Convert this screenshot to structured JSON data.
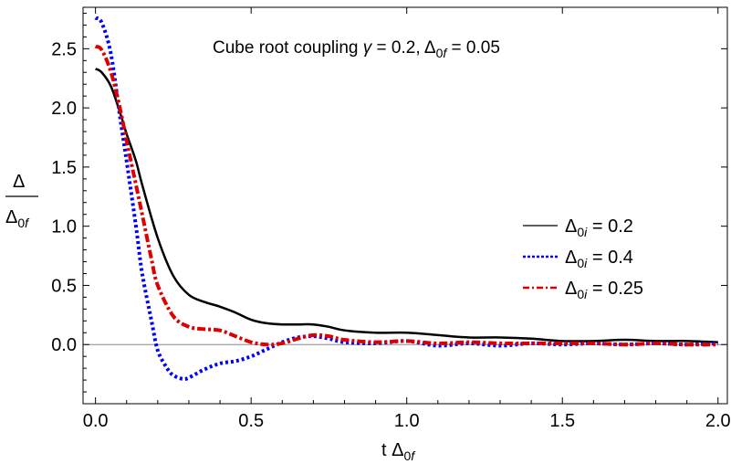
{
  "chart_data": {
    "type": "line",
    "title": {
      "prefix": "Cube root coupling ",
      "gamma_symbol": "γ",
      "gamma_rest": " = 0.2, Δ",
      "gamma_sub": "0",
      "gamma_sub_italic": "f",
      "delta_rest": " = 0.05"
    },
    "xlabel": {
      "main": "t Δ",
      "sub": "0",
      "sub_italic": "f"
    },
    "ylabel": {
      "numerator": "Δ",
      "denominator": "Δ",
      "den_sub": "0",
      "den_sub_italic": "f"
    },
    "xlim": [
      -0.04,
      2.03
    ],
    "ylim": [
      -0.5,
      2.85
    ],
    "xticks": [
      "0.0",
      "0.5",
      "1.0",
      "1.5",
      "2.0"
    ],
    "xtick_values": [
      0,
      0.5,
      1.0,
      1.5,
      2.0
    ],
    "yticks": [
      "0.0",
      "0.5",
      "1.0",
      "1.5",
      "2.0",
      "2.5"
    ],
    "ytick_values": [
      0,
      0.5,
      1.0,
      1.5,
      2.0,
      2.5
    ],
    "legend_position": "right",
    "series": [
      {
        "name": "Δ0i = 0.2",
        "legend": {
          "main": "Δ",
          "sub": "0",
          "sub_italic": "i",
          "rest": " = 0.2"
        },
        "color": "#000000",
        "style": "solid",
        "x": [
          0,
          0.02,
          0.05,
          0.08,
          0.1,
          0.13,
          0.15,
          0.2,
          0.25,
          0.3,
          0.35,
          0.4,
          0.45,
          0.5,
          0.55,
          0.6,
          0.65,
          0.7,
          0.75,
          0.8,
          0.9,
          1.0,
          1.1,
          1.2,
          1.3,
          1.4,
          1.5,
          1.6,
          1.7,
          1.8,
          1.9,
          2.0
        ],
        "y": [
          2.33,
          2.3,
          2.18,
          1.95,
          1.78,
          1.55,
          1.35,
          0.9,
          0.58,
          0.42,
          0.36,
          0.32,
          0.27,
          0.21,
          0.18,
          0.17,
          0.17,
          0.17,
          0.15,
          0.12,
          0.1,
          0.1,
          0.08,
          0.06,
          0.06,
          0.05,
          0.03,
          0.03,
          0.04,
          0.03,
          0.03,
          0.02
        ]
      },
      {
        "name": "Δ0i = 0.4",
        "legend": {
          "main": "Δ",
          "sub": "0",
          "sub_italic": "i",
          "rest": " = 0.4"
        },
        "color": "#0000ff",
        "style": "dotted",
        "x": [
          0,
          0.02,
          0.05,
          0.08,
          0.1,
          0.13,
          0.15,
          0.18,
          0.2,
          0.23,
          0.25,
          0.28,
          0.3,
          0.35,
          0.4,
          0.45,
          0.5,
          0.55,
          0.6,
          0.65,
          0.7,
          0.75,
          0.8,
          0.9,
          1.0,
          1.1,
          1.2,
          1.3,
          1.4,
          1.5,
          1.6,
          1.7,
          1.8,
          1.9,
          2.0
        ],
        "y": [
          2.76,
          2.72,
          2.45,
          1.9,
          1.55,
          1.0,
          0.6,
          0.2,
          -0.05,
          -0.2,
          -0.26,
          -0.29,
          -0.28,
          -0.21,
          -0.16,
          -0.14,
          -0.1,
          -0.04,
          0.02,
          0.06,
          0.07,
          0.05,
          0.02,
          0.01,
          0.03,
          -0.01,
          0.01,
          -0.01,
          0.01,
          0.0,
          0.01,
          0.0,
          0.01,
          0.0,
          0.01
        ]
      },
      {
        "name": "Δ0i = 0.25",
        "legend": {
          "main": "Δ",
          "sub": "0",
          "sub_italic": "i",
          "rest": " = 0.25"
        },
        "color": "#dd0000",
        "style": "dashdot",
        "x": [
          0,
          0.02,
          0.05,
          0.08,
          0.1,
          0.13,
          0.15,
          0.18,
          0.2,
          0.25,
          0.3,
          0.35,
          0.4,
          0.45,
          0.5,
          0.55,
          0.6,
          0.65,
          0.7,
          0.75,
          0.8,
          0.9,
          1.0,
          1.1,
          1.2,
          1.3,
          1.4,
          1.5,
          1.6,
          1.7,
          1.8,
          1.9,
          2.0
        ],
        "y": [
          2.52,
          2.49,
          2.3,
          1.98,
          1.72,
          1.35,
          1.1,
          0.72,
          0.5,
          0.24,
          0.15,
          0.13,
          0.12,
          0.07,
          0.02,
          0.0,
          0.01,
          0.05,
          0.08,
          0.07,
          0.04,
          0.02,
          0.03,
          0.01,
          0.02,
          0.01,
          0.01,
          0.01,
          0.01,
          0.0,
          0.01,
          0.0,
          0.0
        ]
      }
    ]
  }
}
